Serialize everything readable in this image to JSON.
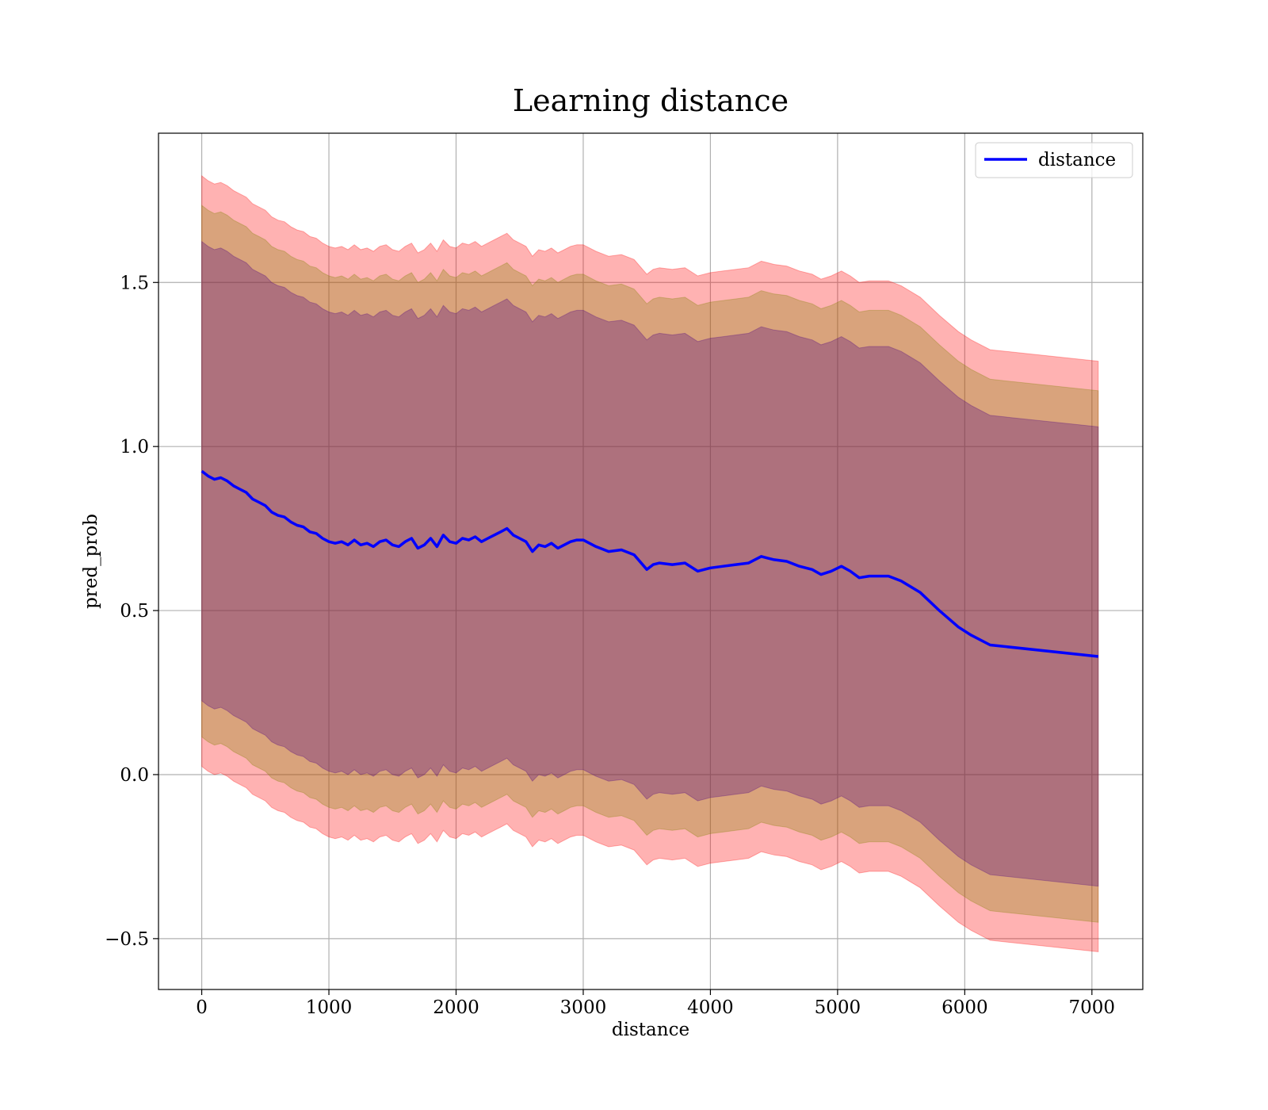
{
  "chart_data": {
    "type": "area",
    "title": "Learning distance",
    "xlabel": "distance",
    "ylabel": "pred_prob",
    "xlim": [
      -340,
      7400
    ],
    "ylim": [
      -0.655,
      1.955
    ],
    "xticks": [
      0,
      1000,
      2000,
      3000,
      4000,
      5000,
      6000,
      7000
    ],
    "xtick_labels": [
      "0",
      "1000",
      "2000",
      "3000",
      "4000",
      "5000",
      "6000",
      "7000"
    ],
    "yticks": [
      -0.5,
      0.0,
      0.5,
      1.0,
      1.5
    ],
    "ytick_labels": [
      "−0.5",
      "0.0",
      "0.5",
      "1.0",
      "1.5"
    ],
    "grid": true,
    "legend_position": "top-right",
    "colors": {
      "line": "#0000ff",
      "band_outer": "#ff0000",
      "band_middle": "#808000",
      "band_inner": "#4b0082"
    },
    "series": [
      {
        "name": "distance",
        "x": [
          0,
          50,
          100,
          150,
          200,
          250,
          300,
          350,
          400,
          450,
          500,
          550,
          600,
          650,
          700,
          750,
          800,
          850,
          900,
          950,
          1000,
          1050,
          1100,
          1150,
          1200,
          1250,
          1300,
          1350,
          1400,
          1450,
          1500,
          1550,
          1600,
          1650,
          1700,
          1750,
          1800,
          1850,
          1900,
          1950,
          2000,
          2050,
          2100,
          2150,
          2200,
          2250,
          2300,
          2350,
          2400,
          2450,
          2500,
          2550,
          2600,
          2650,
          2700,
          2750,
          2800,
          2850,
          2900,
          2950,
          3000,
          3100,
          3200,
          3300,
          3400,
          3500,
          3550,
          3600,
          3700,
          3800,
          3900,
          4000,
          4100,
          4200,
          4300,
          4400,
          4450,
          4500,
          4600,
          4700,
          4800,
          4870,
          4950,
          5030,
          5100,
          5170,
          5250,
          5400,
          5500,
          5650,
          5800,
          5950,
          6050,
          6200,
          7050
        ],
        "y": [
          0.925,
          0.91,
          0.9,
          0.905,
          0.895,
          0.88,
          0.87,
          0.86,
          0.84,
          0.83,
          0.82,
          0.8,
          0.79,
          0.785,
          0.77,
          0.76,
          0.755,
          0.74,
          0.735,
          0.72,
          0.71,
          0.705,
          0.71,
          0.7,
          0.715,
          0.7,
          0.705,
          0.695,
          0.71,
          0.715,
          0.7,
          0.695,
          0.71,
          0.72,
          0.69,
          0.7,
          0.72,
          0.695,
          0.73,
          0.71,
          0.705,
          0.72,
          0.715,
          0.725,
          0.71,
          0.72,
          0.73,
          0.74,
          0.75,
          0.73,
          0.72,
          0.71,
          0.68,
          0.7,
          0.695,
          0.705,
          0.69,
          0.7,
          0.71,
          0.715,
          0.715,
          0.695,
          0.68,
          0.685,
          0.67,
          0.625,
          0.64,
          0.645,
          0.64,
          0.645,
          0.62,
          0.63,
          0.635,
          0.64,
          0.645,
          0.665,
          0.66,
          0.655,
          0.65,
          0.635,
          0.625,
          0.61,
          0.62,
          0.635,
          0.62,
          0.6,
          0.605,
          0.605,
          0.59,
          0.555,
          0.5,
          0.45,
          0.425,
          0.395,
          0.36
        ]
      }
    ],
    "bands": [
      {
        "color_key": "band_outer",
        "half_width": 0.9
      },
      {
        "color_key": "band_middle",
        "half_width": 0.81
      },
      {
        "color_key": "band_inner",
        "half_width": 0.7
      }
    ]
  }
}
